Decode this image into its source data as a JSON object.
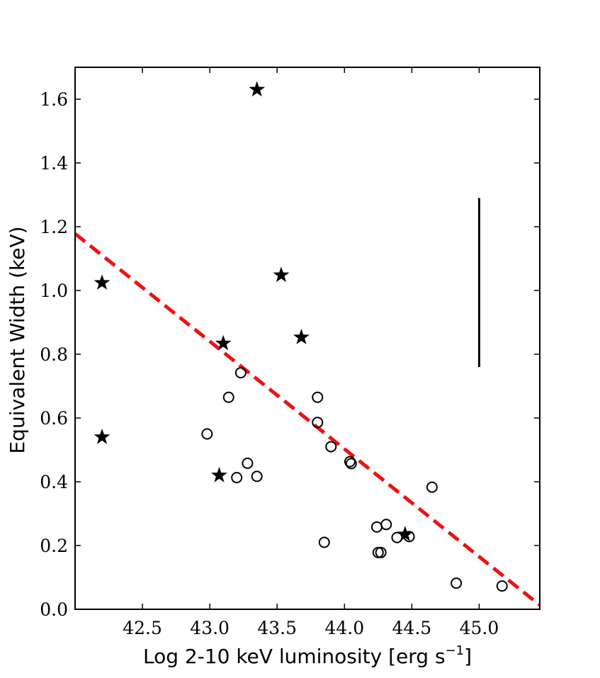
{
  "chart_data": {
    "type": "scatter",
    "title": "",
    "xlabel": "Log 2-10 keV luminosity [erg s",
    "xlabel_sup": "−1",
    "xlabel_end": "]",
    "ylabel": "Equivalent Width (keV)",
    "xlim": [
      42.0,
      45.45
    ],
    "ylim": [
      0.0,
      1.7
    ],
    "xticks": [
      42.5,
      43.0,
      43.5,
      44.0,
      44.5,
      45.0
    ],
    "xtick_labels": [
      "42.5",
      "43.0",
      "43.5",
      "44.0",
      "44.5",
      "45.0"
    ],
    "yticks": [
      0.0,
      0.2,
      0.4,
      0.6,
      0.8,
      1.0,
      1.2,
      1.4,
      1.6
    ],
    "ytick_labels": [
      "0.0",
      "0.2",
      "0.4",
      "0.6",
      "0.8",
      "1.0",
      "1.2",
      "1.4",
      "1.6"
    ],
    "grid": false,
    "series": [
      {
        "name": "circles",
        "marker": "open-circle",
        "color": "#000000",
        "points": [
          [
            42.98,
            0.55
          ],
          [
            43.14,
            0.665
          ],
          [
            43.23,
            0.742
          ],
          [
            43.2,
            0.413
          ],
          [
            43.28,
            0.458
          ],
          [
            43.35,
            0.417
          ],
          [
            43.8,
            0.665
          ],
          [
            43.8,
            0.586
          ],
          [
            43.9,
            0.51
          ],
          [
            43.85,
            0.21
          ],
          [
            44.04,
            0.463
          ],
          [
            44.05,
            0.457
          ],
          [
            44.24,
            0.258
          ],
          [
            44.31,
            0.266
          ],
          [
            44.39,
            0.225
          ],
          [
            44.48,
            0.228
          ],
          [
            44.25,
            0.178
          ],
          [
            44.27,
            0.178
          ],
          [
            44.65,
            0.383
          ],
          [
            44.83,
            0.082
          ],
          [
            45.17,
            0.073
          ]
        ]
      },
      {
        "name": "stars",
        "marker": "filled-star",
        "color": "#000000",
        "points": [
          [
            42.2,
            1.024
          ],
          [
            42.2,
            0.54
          ],
          [
            43.1,
            0.834
          ],
          [
            43.07,
            0.42
          ],
          [
            43.35,
            1.63
          ],
          [
            43.53,
            1.048
          ],
          [
            43.68,
            0.853
          ],
          [
            44.45,
            0.235
          ]
        ]
      }
    ],
    "fit_line": {
      "color": "#ee1111",
      "style": "dashed",
      "points": [
        [
          42.0,
          1.178
        ],
        [
          45.45,
          0.013
        ]
      ]
    },
    "error_bar": {
      "x": 45.0,
      "y_low": 0.76,
      "y_high": 1.29,
      "color": "#000000"
    }
  }
}
